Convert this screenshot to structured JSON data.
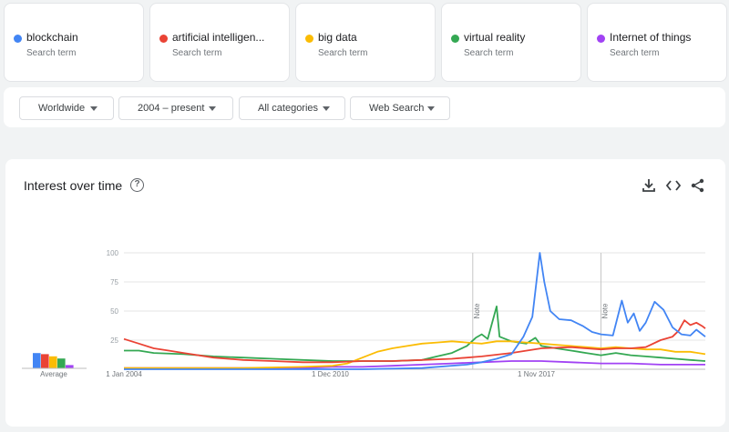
{
  "search_terms": [
    {
      "name": "blockchain",
      "subtitle": "Search term",
      "color": "#4285f4"
    },
    {
      "name": "artificial intelligen...",
      "subtitle": "Search term",
      "color": "#ea4335"
    },
    {
      "name": "big data",
      "subtitle": "Search term",
      "color": "#fbbc04"
    },
    {
      "name": "virtual reality",
      "subtitle": "Search term",
      "color": "#34a853"
    },
    {
      "name": "Internet of things",
      "subtitle": "Search term",
      "color": "#a142f4"
    }
  ],
  "filters": {
    "region": "Worldwide",
    "time_range": "2004 – present",
    "category": "All categories",
    "search_type": "Web Search"
  },
  "panel": {
    "title": "Interest over time",
    "help_icon": "help-circle-icon",
    "icons": [
      "download-icon",
      "embed-code-icon",
      "share-icon"
    ]
  },
  "chart_data": {
    "type": "line",
    "y_ticks": [
      "100",
      "75",
      "50",
      "25"
    ],
    "ylim": [
      0,
      100
    ],
    "x_ticks": [
      "1 Jan 2004",
      "1 Dec 2010",
      "1 Nov 2017"
    ],
    "xlim": [
      2004.0,
      2023.5
    ],
    "grid": true,
    "annotations": [
      {
        "label": "Note",
        "x": 2015.7
      },
      {
        "label": "Note",
        "x": 2020.0
      }
    ],
    "average_label": "Average",
    "averages": [
      {
        "name": "blockchain",
        "value": 14,
        "color": "#4285f4"
      },
      {
        "name": "artificial intelligen...",
        "value": 13,
        "color": "#ea4335"
      },
      {
        "name": "big data",
        "value": 11,
        "color": "#fbbc04"
      },
      {
        "name": "virtual reality",
        "value": 9,
        "color": "#34a853"
      },
      {
        "name": "Internet of things",
        "value": 3,
        "color": "#a142f4"
      }
    ],
    "series": [
      {
        "name": "blockchain",
        "color": "#4285f4",
        "points": [
          [
            2004.0,
            0
          ],
          [
            2012.0,
            0
          ],
          [
            2014.0,
            1
          ],
          [
            2015.5,
            4
          ],
          [
            2016.0,
            6
          ],
          [
            2016.5,
            9
          ],
          [
            2017.0,
            13
          ],
          [
            2017.4,
            28
          ],
          [
            2017.7,
            45
          ],
          [
            2017.95,
            100
          ],
          [
            2018.1,
            75
          ],
          [
            2018.3,
            50
          ],
          [
            2018.6,
            43
          ],
          [
            2019.0,
            42
          ],
          [
            2019.4,
            37
          ],
          [
            2019.7,
            32
          ],
          [
            2020.0,
            30
          ],
          [
            2020.4,
            29
          ],
          [
            2020.7,
            59
          ],
          [
            2020.9,
            40
          ],
          [
            2021.1,
            48
          ],
          [
            2021.3,
            33
          ],
          [
            2021.5,
            40
          ],
          [
            2021.8,
            58
          ],
          [
            2022.1,
            51
          ],
          [
            2022.4,
            36
          ],
          [
            2022.7,
            30
          ],
          [
            2023.0,
            29
          ],
          [
            2023.2,
            34
          ],
          [
            2023.5,
            28
          ]
        ]
      },
      {
        "name": "artificial intelligen...",
        "color": "#ea4335",
        "points": [
          [
            2004.0,
            26
          ],
          [
            2004.5,
            22
          ],
          [
            2005.0,
            18
          ],
          [
            2005.5,
            16
          ],
          [
            2006.0,
            14
          ],
          [
            2007.0,
            10
          ],
          [
            2008.0,
            8
          ],
          [
            2009.0,
            7
          ],
          [
            2010.0,
            6
          ],
          [
            2011.0,
            6
          ],
          [
            2012.0,
            7
          ],
          [
            2013.0,
            7
          ],
          [
            2014.0,
            8
          ],
          [
            2015.0,
            9
          ],
          [
            2016.0,
            11
          ],
          [
            2017.0,
            14
          ],
          [
            2018.0,
            18
          ],
          [
            2019.0,
            19
          ],
          [
            2019.5,
            18
          ],
          [
            2020.0,
            17
          ],
          [
            2020.5,
            18
          ],
          [
            2021.0,
            18
          ],
          [
            2021.5,
            19
          ],
          [
            2022.0,
            25
          ],
          [
            2022.4,
            28
          ],
          [
            2022.6,
            33
          ],
          [
            2022.8,
            42
          ],
          [
            2023.0,
            38
          ],
          [
            2023.2,
            40
          ],
          [
            2023.4,
            37
          ],
          [
            2023.5,
            35
          ]
        ]
      },
      {
        "name": "big data",
        "color": "#fbbc04",
        "points": [
          [
            2004.0,
            1
          ],
          [
            2008.0,
            1
          ],
          [
            2010.0,
            2
          ],
          [
            2011.0,
            3
          ],
          [
            2011.5,
            5
          ],
          [
            2012.0,
            10
          ],
          [
            2012.5,
            15
          ],
          [
            2013.0,
            18
          ],
          [
            2013.5,
            20
          ],
          [
            2014.0,
            22
          ],
          [
            2014.5,
            23
          ],
          [
            2015.0,
            24
          ],
          [
            2015.5,
            23
          ],
          [
            2016.0,
            22
          ],
          [
            2016.5,
            24
          ],
          [
            2017.0,
            24
          ],
          [
            2017.5,
            23
          ],
          [
            2018.0,
            22
          ],
          [
            2018.5,
            21
          ],
          [
            2019.0,
            20
          ],
          [
            2019.5,
            19
          ],
          [
            2020.0,
            18
          ],
          [
            2020.5,
            19
          ],
          [
            2021.0,
            18
          ],
          [
            2021.5,
            17
          ],
          [
            2022.0,
            17
          ],
          [
            2022.5,
            15
          ],
          [
            2023.0,
            15
          ],
          [
            2023.5,
            13
          ]
        ]
      },
      {
        "name": "virtual reality",
        "color": "#34a853",
        "points": [
          [
            2004.0,
            16
          ],
          [
            2004.5,
            16
          ],
          [
            2005.0,
            14
          ],
          [
            2006.0,
            13
          ],
          [
            2007.0,
            11
          ],
          [
            2008.0,
            10
          ],
          [
            2009.0,
            9
          ],
          [
            2010.0,
            8
          ],
          [
            2011.0,
            7
          ],
          [
            2012.0,
            7
          ],
          [
            2013.0,
            7
          ],
          [
            2014.0,
            8
          ],
          [
            2014.5,
            11
          ],
          [
            2015.0,
            14
          ],
          [
            2015.5,
            20
          ],
          [
            2015.8,
            27
          ],
          [
            2016.0,
            30
          ],
          [
            2016.2,
            26
          ],
          [
            2016.5,
            54
          ],
          [
            2016.6,
            28
          ],
          [
            2017.0,
            24
          ],
          [
            2017.5,
            22
          ],
          [
            2017.8,
            27
          ],
          [
            2018.0,
            20
          ],
          [
            2018.5,
            18
          ],
          [
            2019.0,
            16
          ],
          [
            2019.5,
            14
          ],
          [
            2020.0,
            12
          ],
          [
            2020.5,
            14
          ],
          [
            2021.0,
            12
          ],
          [
            2021.5,
            11
          ],
          [
            2022.0,
            10
          ],
          [
            2022.5,
            9
          ],
          [
            2023.0,
            8
          ],
          [
            2023.5,
            7
          ]
        ]
      },
      {
        "name": "Internet of things",
        "color": "#a142f4",
        "points": [
          [
            2004.0,
            1
          ],
          [
            2010.0,
            1
          ],
          [
            2011.0,
            2
          ],
          [
            2012.0,
            2
          ],
          [
            2013.0,
            3
          ],
          [
            2014.0,
            4
          ],
          [
            2015.0,
            5
          ],
          [
            2016.0,
            6
          ],
          [
            2017.0,
            7
          ],
          [
            2018.0,
            7
          ],
          [
            2019.0,
            6
          ],
          [
            2020.0,
            5
          ],
          [
            2021.0,
            5
          ],
          [
            2022.0,
            4
          ],
          [
            2023.0,
            4
          ],
          [
            2023.5,
            4
          ]
        ]
      }
    ]
  }
}
